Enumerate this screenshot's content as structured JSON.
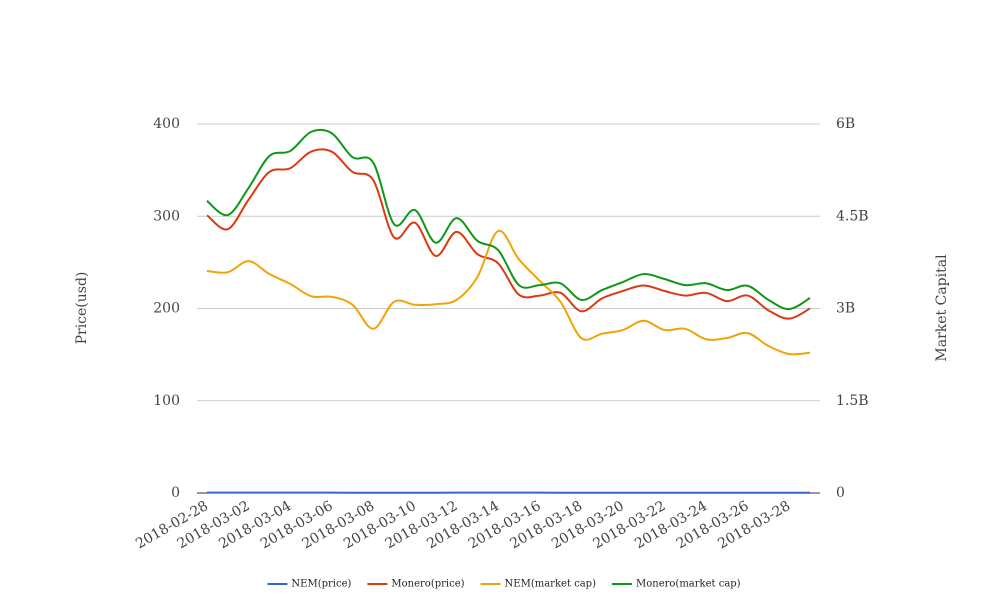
{
  "chart_data": {
    "type": "line",
    "x": [
      "2018-02-28",
      "2018-03-01",
      "2018-03-02",
      "2018-03-03",
      "2018-03-04",
      "2018-03-05",
      "2018-03-06",
      "2018-03-07",
      "2018-03-08",
      "2018-03-09",
      "2018-03-10",
      "2018-03-11",
      "2018-03-12",
      "2018-03-13",
      "2018-03-14",
      "2018-03-15",
      "2018-03-16",
      "2018-03-17",
      "2018-03-18",
      "2018-03-19",
      "2018-03-20",
      "2018-03-21",
      "2018-03-22",
      "2018-03-23",
      "2018-03-24",
      "2018-03-25",
      "2018-03-26",
      "2018-03-27",
      "2018-03-28",
      "2018-03-29"
    ],
    "xticks": [
      "2018-02-28",
      "2018-03-02",
      "2018-03-04",
      "2018-03-06",
      "2018-03-08",
      "2018-03-10",
      "2018-03-12",
      "2018-03-14",
      "2018-03-16",
      "2018-03-18",
      "2018-03-20",
      "2018-03-22",
      "2018-03-24",
      "2018-03-26",
      "2018-03-28"
    ],
    "y_label": "Price(usd)",
    "y2_label": "Market Capital",
    "ylim": [
      0,
      400
    ],
    "yticks": [
      0,
      100,
      200,
      300,
      400
    ],
    "y2lim": [
      0,
      6000000000
    ],
    "y2ticks": [
      0,
      {
        "value": 1500000000,
        "label": "1.5B"
      },
      {
        "value": 3000000000,
        "label": "3B"
      },
      {
        "value": 4500000000,
        "label": "4.5B"
      },
      {
        "value": 6000000000,
        "label": "6B"
      }
    ],
    "grid": true,
    "series": [
      {
        "name": "NEM(price)",
        "color": "#3366cc",
        "values": [
          0.39,
          0.39,
          0.41,
          0.38,
          0.37,
          0.35,
          0.34,
          0.33,
          0.29,
          0.33,
          0.33,
          0.33,
          0.34,
          0.37,
          0.45,
          0.4,
          0.37,
          0.33,
          0.27,
          0.28,
          0.28,
          0.3,
          0.28,
          0.28,
          0.27,
          0.27,
          0.28,
          0.26,
          0.24,
          0.24
        ]
      },
      {
        "name": "Monero(price)",
        "color": "#dc3912",
        "values": [
          301,
          286,
          318,
          348,
          352,
          370,
          370,
          348,
          339,
          277,
          293,
          257,
          283,
          259,
          249,
          215,
          214,
          217,
          197,
          211,
          219,
          225,
          219,
          214,
          217,
          208,
          214,
          198,
          189,
          200
        ]
      },
      {
        "name": "NEM(market cap)",
        "color": "#f0a30a",
        "axis": "y2",
        "values": [
          3610000000,
          3590000000,
          3770000000,
          3560000000,
          3400000000,
          3200000000,
          3190000000,
          3060000000,
          2670000000,
          3110000000,
          3060000000,
          3070000000,
          3140000000,
          3510000000,
          4260000000,
          3800000000,
          3450000000,
          3110000000,
          2520000000,
          2590000000,
          2650000000,
          2800000000,
          2650000000,
          2670000000,
          2500000000,
          2520000000,
          2600000000,
          2390000000,
          2260000000,
          2280000000
        ]
      },
      {
        "name": "Monero(market cap)",
        "color": "#109618",
        "axis": "y2",
        "values": [
          4750000000,
          4520000000,
          4960000000,
          5480000000,
          5560000000,
          5870000000,
          5850000000,
          5460000000,
          5370000000,
          4370000000,
          4600000000,
          4070000000,
          4470000000,
          4100000000,
          3950000000,
          3380000000,
          3380000000,
          3410000000,
          3140000000,
          3300000000,
          3430000000,
          3560000000,
          3480000000,
          3380000000,
          3410000000,
          3300000000,
          3370000000,
          3140000000,
          2990000000,
          3170000000
        ]
      }
    ]
  }
}
